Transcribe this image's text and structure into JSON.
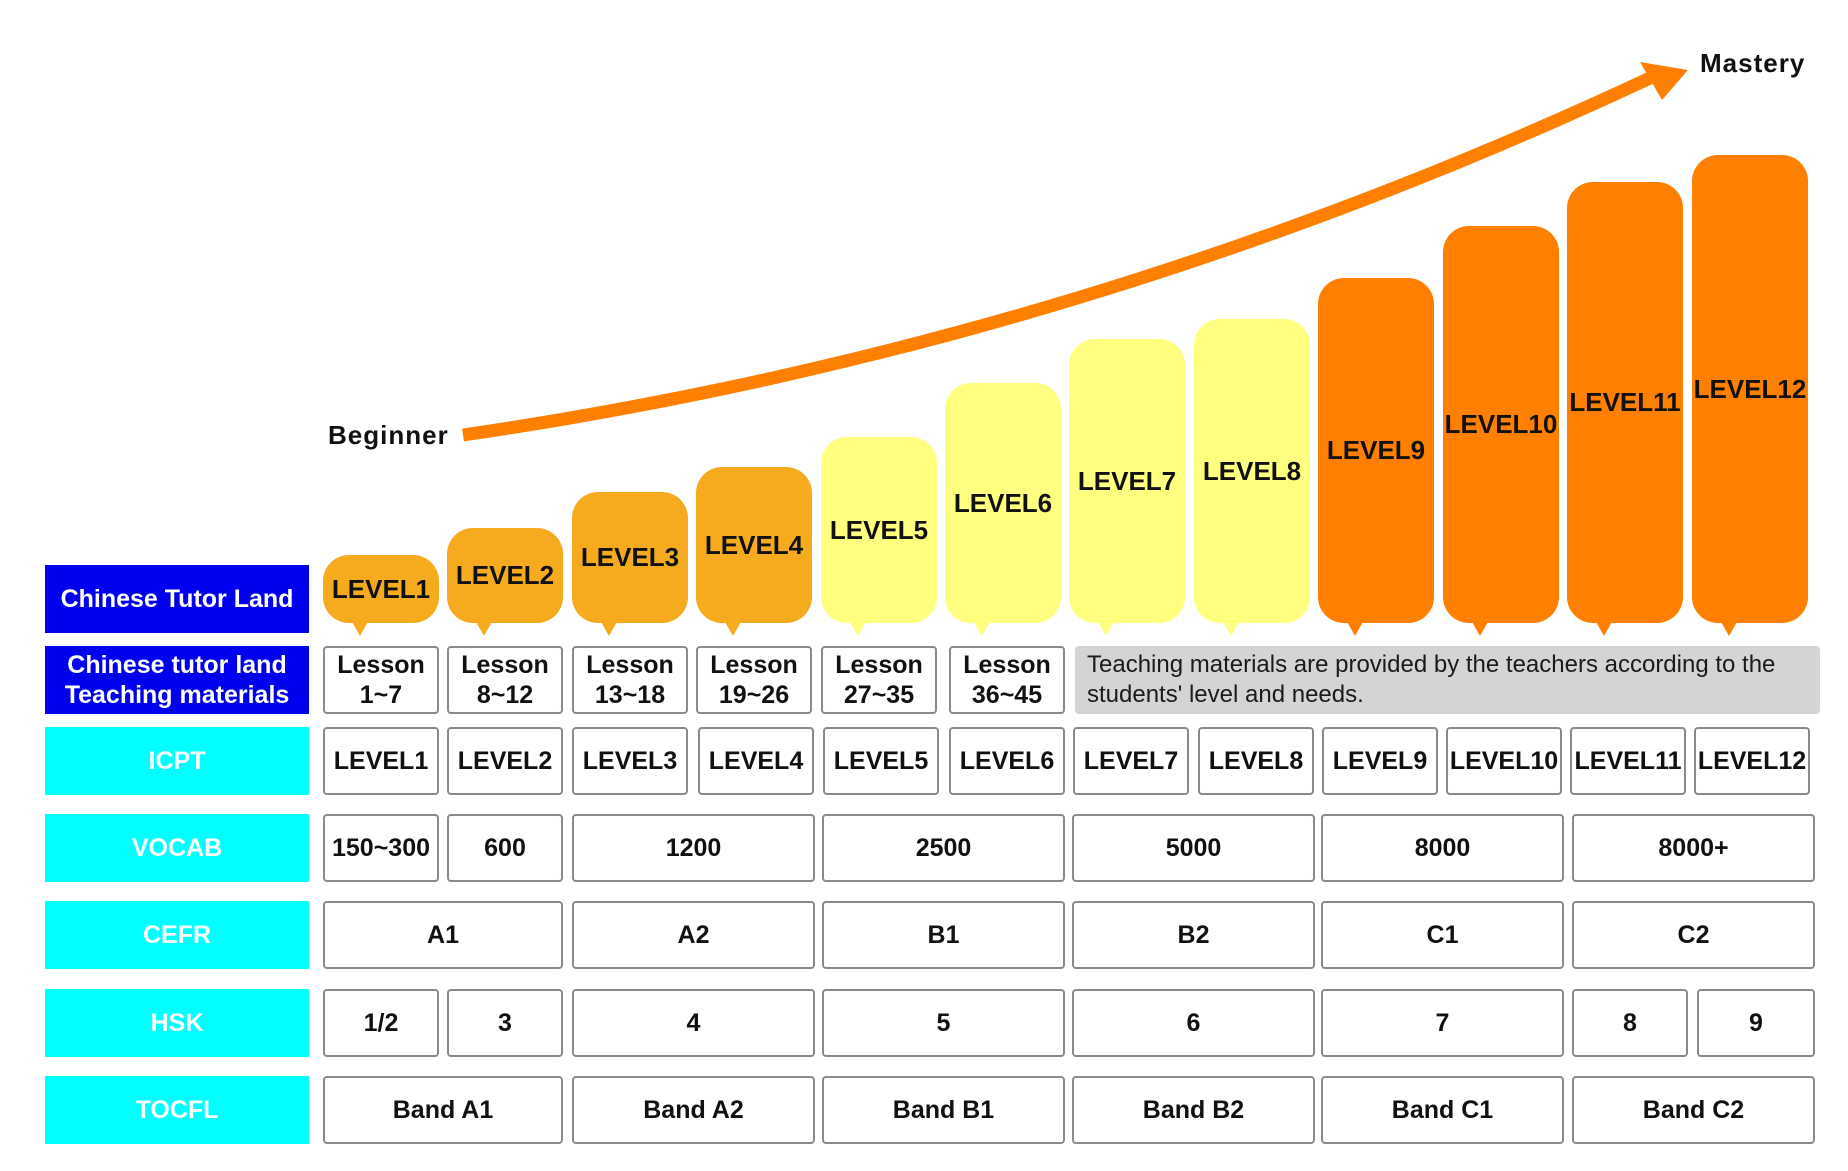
{
  "progression": {
    "start_label": "Beginner",
    "end_label": "Mastery",
    "arrow_color": "#ff8000"
  },
  "levels": [
    {
      "label": "LEVEL1",
      "color": "#f6ab1f"
    },
    {
      "label": "LEVEL2",
      "color": "#f6ab1f"
    },
    {
      "label": "LEVEL3",
      "color": "#f6ab1f"
    },
    {
      "label": "LEVEL4",
      "color": "#f6ab1f"
    },
    {
      "label": "LEVEL5",
      "color": "#ffff80"
    },
    {
      "label": "LEVEL6",
      "color": "#ffff80"
    },
    {
      "label": "LEVEL7",
      "color": "#ffff80"
    },
    {
      "label": "LEVEL8",
      "color": "#ffff80"
    },
    {
      "label": "LEVEL9",
      "color": "#ff8000"
    },
    {
      "label": "LEVEL10",
      "color": "#ff8000"
    },
    {
      "label": "LEVEL11",
      "color": "#ff8000"
    },
    {
      "label": "LEVEL12",
      "color": "#ff8000"
    }
  ],
  "row_labels": {
    "brand": "Chinese Tutor Land",
    "materials_line1": "Chinese tutor land",
    "materials_line2": "Teaching materials",
    "icpt": "ICPT",
    "vocab": "VOCAB",
    "cefr": "CEFR",
    "hsk": "HSK",
    "tocfl": "TOCFL"
  },
  "colors": {
    "brand_bg": "#0000ee",
    "row_label_bg": "#00ffff",
    "note_bg": "#d4d4d4"
  },
  "lessons": [
    {
      "line1": "Lesson",
      "line2": "1~7"
    },
    {
      "line1": "Lesson",
      "line2": "8~12"
    },
    {
      "line1": "Lesson",
      "line2": "13~18"
    },
    {
      "line1": "Lesson",
      "line2": "19~26"
    },
    {
      "line1": "Lesson",
      "line2": "27~35"
    },
    {
      "line1": "Lesson",
      "line2": "36~45"
    }
  ],
  "materials_note": "Teaching materials are provided by the teachers according to the students' level and needs.",
  "icpt": [
    "LEVEL1",
    "LEVEL2",
    "LEVEL3",
    "LEVEL4",
    "LEVEL5",
    "LEVEL6",
    "LEVEL7",
    "LEVEL8",
    "LEVEL9",
    "LEVEL10",
    "LEVEL11",
    "LEVEL12"
  ],
  "vocab": [
    "150~300",
    "600",
    "1200",
    "2500",
    "5000",
    "8000",
    "8000+"
  ],
  "cefr": [
    "A1",
    "A2",
    "B1",
    "B2",
    "C1",
    "C2"
  ],
  "hsk": [
    "1/2",
    "3",
    "4",
    "5",
    "6",
    "7",
    "8",
    "9"
  ],
  "tocfl": [
    "Band A1",
    "Band A2",
    "Band B1",
    "Band B2",
    "Band C1",
    "Band C2"
  ]
}
